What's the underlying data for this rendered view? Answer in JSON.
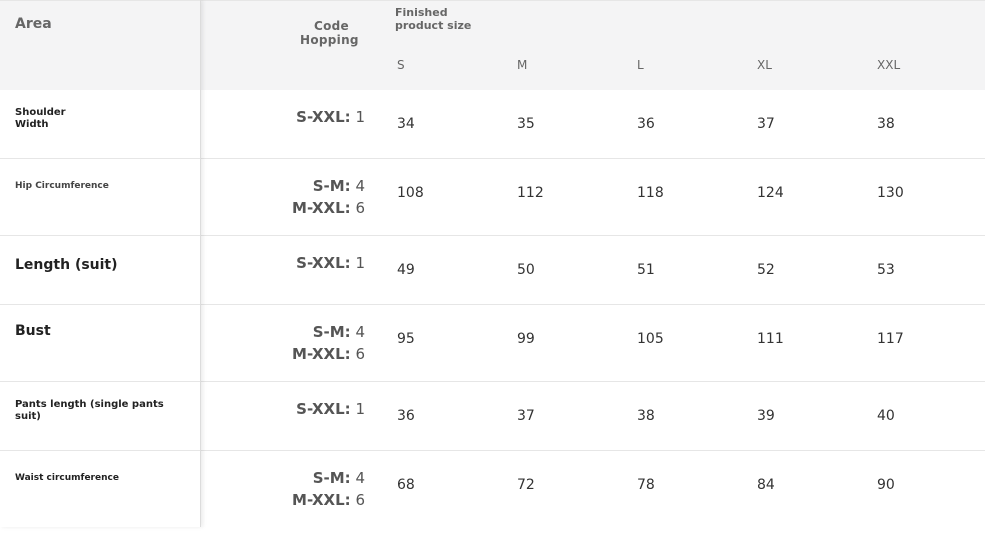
{
  "header": {
    "area": "Area",
    "code_hopping_line1": "Code",
    "code_hopping_line2": "Hopping",
    "finished_line1": "Finished",
    "finished_line2": "product size",
    "sizes": [
      "S",
      "M",
      "L",
      "XL",
      "XXL"
    ]
  },
  "rows": [
    {
      "label_line1": "Shoulder",
      "label_line2": "Width",
      "hop": [
        {
          "range": "S-XXL:",
          "value": "1"
        }
      ],
      "values": [
        "34",
        "35",
        "36",
        "37",
        "38"
      ]
    },
    {
      "label_line1": "Hip Circumference",
      "label_line2": "",
      "hop": [
        {
          "range": "S-M:",
          "value": "4"
        },
        {
          "range": "M-XXL:",
          "value": "6"
        }
      ],
      "values": [
        "108",
        "112",
        "118",
        "124",
        "130"
      ]
    },
    {
      "label_line1": "Length (suit)",
      "label_line2": "",
      "hop": [
        {
          "range": "S-XXL:",
          "value": "1"
        }
      ],
      "values": [
        "49",
        "50",
        "51",
        "52",
        "53"
      ]
    },
    {
      "label_line1": "Bust",
      "label_line2": "",
      "hop": [
        {
          "range": "S-M:",
          "value": "4"
        },
        {
          "range": "M-XXL:",
          "value": "6"
        }
      ],
      "values": [
        "95",
        "99",
        "105",
        "111",
        "117"
      ]
    },
    {
      "label_line1": "Pants length (single pants",
      "label_line2": "suit)",
      "hop": [
        {
          "range": "S-XXL:",
          "value": "1"
        }
      ],
      "values": [
        "36",
        "37",
        "38",
        "39",
        "40"
      ]
    },
    {
      "label_line1": "Waist circumference",
      "label_line2": "",
      "hop": [
        {
          "range": "S-M:",
          "value": "4"
        },
        {
          "range": "M-XXL:",
          "value": "6"
        }
      ],
      "values": [
        "68",
        "72",
        "78",
        "84",
        "90"
      ]
    }
  ]
}
